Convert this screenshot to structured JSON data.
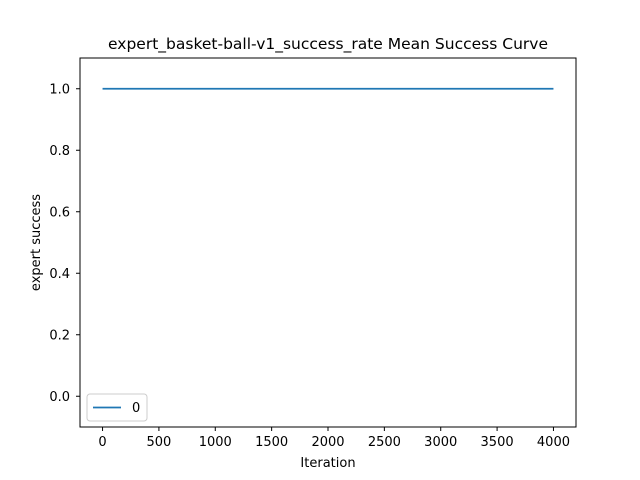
{
  "chart_data": {
    "type": "line",
    "title": "expert_basket-ball-v1_success_rate Mean Success Curve",
    "xlabel": "Iteration",
    "ylabel": "expert success",
    "xlim": [
      -200,
      4200
    ],
    "ylim": [
      -0.1,
      1.1
    ],
    "xticks": [
      0,
      500,
      1000,
      1500,
      2000,
      2500,
      3000,
      3500,
      4000
    ],
    "yticks": [
      0.0,
      0.2,
      0.4,
      0.6,
      0.8,
      1.0
    ],
    "xtick_labels": [
      "0",
      "500",
      "1000",
      "1500",
      "2000",
      "2500",
      "3000",
      "3500",
      "4000"
    ],
    "ytick_labels": [
      "0.0",
      "0.2",
      "0.4",
      "0.6",
      "0.8",
      "1.0"
    ],
    "grid": false,
    "legend_position": "lower-left",
    "series": [
      {
        "name": "0",
        "color": "#1f77b4",
        "x": [
          0,
          4000
        ],
        "y": [
          1.0,
          1.0
        ]
      }
    ]
  }
}
